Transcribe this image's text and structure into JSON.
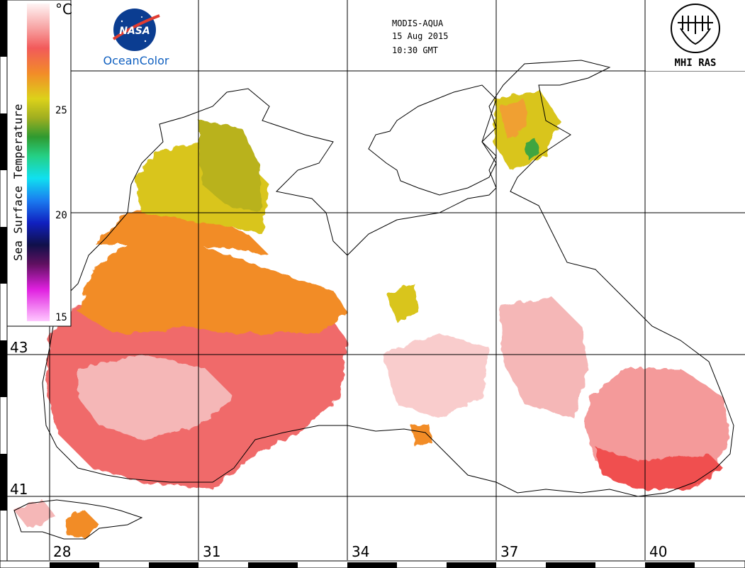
{
  "header": {
    "sensor": "MODIS-AQUA",
    "date": "15 Aug 2015",
    "time": "10:30 GMT"
  },
  "logos": {
    "nasa_text": "NASA",
    "oceancolor": "OceanColor",
    "mhi": "MHI RAS"
  },
  "colorbar": {
    "title": "Sea Surface Temperature",
    "unit": "°C",
    "ticks": [
      "25",
      "20",
      "15"
    ]
  },
  "lat_labels": [
    "43",
    "41"
  ],
  "lon_labels": [
    "28",
    "31",
    "34",
    "37",
    "40"
  ],
  "colors": {
    "warm_red": "#f06a6a",
    "pink": "#f5b7b7",
    "orange": "#f28c28",
    "yellow": "#d9d020",
    "olive": "#b8b020",
    "green": "#3fa540",
    "nasa_blue": "#0b3d91",
    "nasa_red": "#e03c31"
  }
}
